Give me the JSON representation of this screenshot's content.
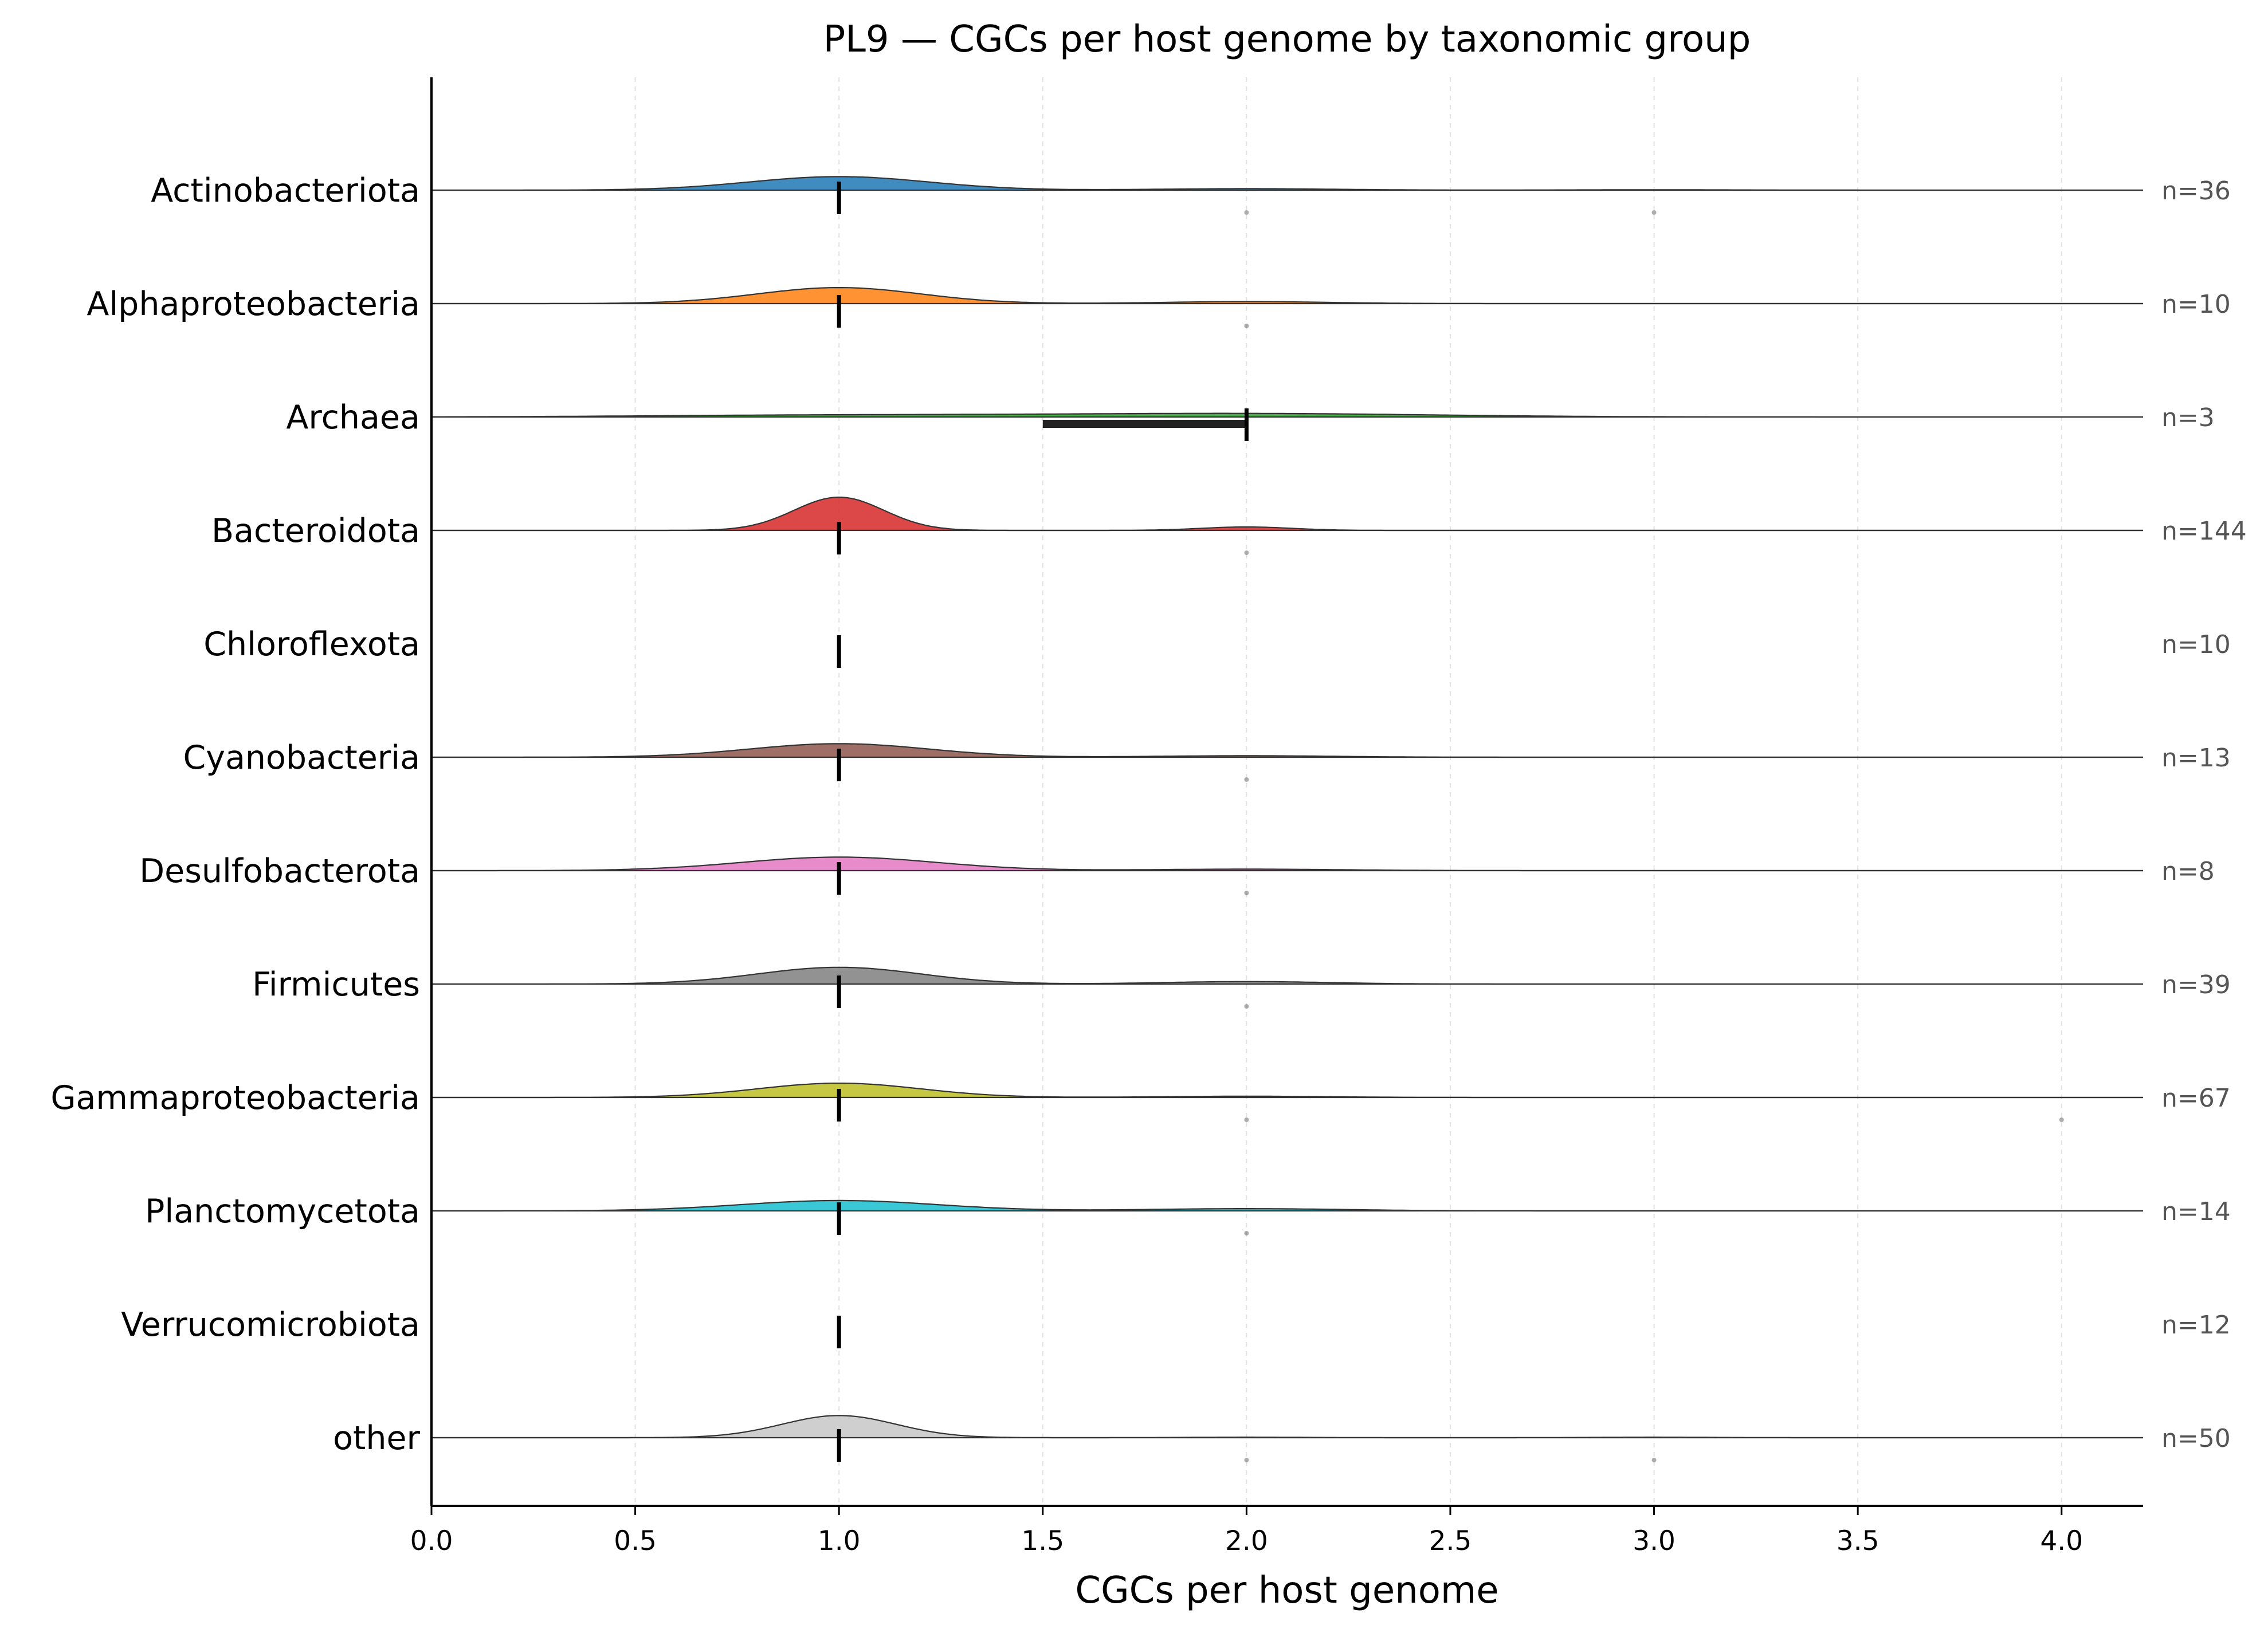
{
  "chart_data": {
    "type": "ridgeline",
    "title": "PL9 — CGCs per host genome by taxonomic group",
    "xlabel": "CGCs per host genome",
    "ylabel": "",
    "xlim": [
      0.0,
      4.2
    ],
    "xticks": [
      "0.0",
      "0.5",
      "1.0",
      "1.5",
      "2.0",
      "2.5",
      "3.0",
      "3.5",
      "4.0"
    ],
    "grid": "vertical dashed",
    "groups": [
      {
        "name": "Actinobacteriota",
        "n_label": "n=36",
        "color": "#1f77b4",
        "density_peaks": [
          {
            "x": 1.0,
            "h": 0.55,
            "w": 0.22
          },
          {
            "x": 2.0,
            "h": 0.06,
            "w": 0.22
          },
          {
            "x": 3.0,
            "h": 0.015,
            "w": 0.22
          }
        ],
        "median": 1.0,
        "iqr": [
          1.0,
          1.0
        ],
        "outliers": [
          2.0,
          3.0
        ]
      },
      {
        "name": "Alphaproteobacteria",
        "n_label": "n=10",
        "color": "#ff7f0e",
        "density_peaks": [
          {
            "x": 1.0,
            "h": 0.65,
            "w": 0.2
          },
          {
            "x": 2.0,
            "h": 0.08,
            "w": 0.2
          }
        ],
        "median": 1.0,
        "iqr": [
          1.0,
          1.0
        ],
        "outliers": [
          2.0
        ]
      },
      {
        "name": "Archaea",
        "n_label": "n=3",
        "color": "#2ca02c",
        "density_peaks": [
          {
            "x": 1.0,
            "h": 0.08,
            "w": 0.45
          },
          {
            "x": 2.0,
            "h": 0.14,
            "w": 0.45
          }
        ],
        "median": 2.0,
        "iqr": [
          1.5,
          2.0
        ],
        "outliers": []
      },
      {
        "name": "Bacteroidota",
        "n_label": "n=144",
        "color": "#d62728",
        "density_peaks": [
          {
            "x": 1.0,
            "h": 1.35,
            "w": 0.11
          },
          {
            "x": 2.0,
            "h": 0.14,
            "w": 0.11
          }
        ],
        "median": 1.0,
        "iqr": [
          1.0,
          1.0
        ],
        "outliers": [
          2.0
        ]
      },
      {
        "name": "Chloroflexota",
        "n_label": "n=10",
        "color": "#9467bd",
        "density_peaks": [],
        "median": 1.0,
        "iqr": [
          1.0,
          1.0
        ],
        "outliers": []
      },
      {
        "name": "Cyanobacteria",
        "n_label": "n=13",
        "color": "#8c564b",
        "density_peaks": [
          {
            "x": 1.0,
            "h": 0.55,
            "w": 0.22
          },
          {
            "x": 2.0,
            "h": 0.06,
            "w": 0.22
          }
        ],
        "median": 1.0,
        "iqr": [
          1.0,
          1.0
        ],
        "outliers": [
          2.0
        ]
      },
      {
        "name": "Desulfobacterota",
        "n_label": "n=8",
        "color": "#e377c2",
        "density_peaks": [
          {
            "x": 1.0,
            "h": 0.55,
            "w": 0.24
          },
          {
            "x": 2.0,
            "h": 0.06,
            "w": 0.24
          }
        ],
        "median": 1.0,
        "iqr": [
          1.0,
          1.0
        ],
        "outliers": [
          2.0
        ]
      },
      {
        "name": "Firmicutes",
        "n_label": "n=39",
        "color": "#7f7f7f",
        "density_peaks": [
          {
            "x": 1.0,
            "h": 0.68,
            "w": 0.2
          },
          {
            "x": 2.0,
            "h": 0.1,
            "w": 0.2
          }
        ],
        "median": 1.0,
        "iqr": [
          1.0,
          1.0
        ],
        "outliers": [
          2.0
        ]
      },
      {
        "name": "Gammaproteobacteria",
        "n_label": "n=67",
        "color": "#bcbd22",
        "density_peaks": [
          {
            "x": 1.0,
            "h": 0.58,
            "w": 0.2
          },
          {
            "x": 2.0,
            "h": 0.05,
            "w": 0.2
          }
        ],
        "median": 1.0,
        "iqr": [
          1.0,
          1.0
        ],
        "outliers": [
          2.0,
          4.0
        ]
      },
      {
        "name": "Planctomycetota",
        "n_label": "n=14",
        "color": "#17becf",
        "density_peaks": [
          {
            "x": 1.0,
            "h": 0.42,
            "w": 0.24
          },
          {
            "x": 2.0,
            "h": 0.09,
            "w": 0.24
          }
        ],
        "median": 1.0,
        "iqr": [
          1.0,
          1.0
        ],
        "outliers": [
          2.0
        ]
      },
      {
        "name": "Verrucomicrobiota",
        "n_label": "n=12",
        "color": "#aec7e8",
        "density_peaks": [],
        "median": 1.0,
        "iqr": [
          1.0,
          1.0
        ],
        "outliers": []
      },
      {
        "name": "other",
        "n_label": "n=50",
        "color": "#c7c7c7",
        "density_peaks": [
          {
            "x": 1.0,
            "h": 0.9,
            "w": 0.14
          },
          {
            "x": 2.0,
            "h": 0.02,
            "w": 0.14
          },
          {
            "x": 3.0,
            "h": 0.02,
            "w": 0.14
          }
        ],
        "median": 1.0,
        "iqr": [
          1.0,
          1.0
        ],
        "outliers": [
          2.0,
          3.0
        ]
      }
    ]
  }
}
